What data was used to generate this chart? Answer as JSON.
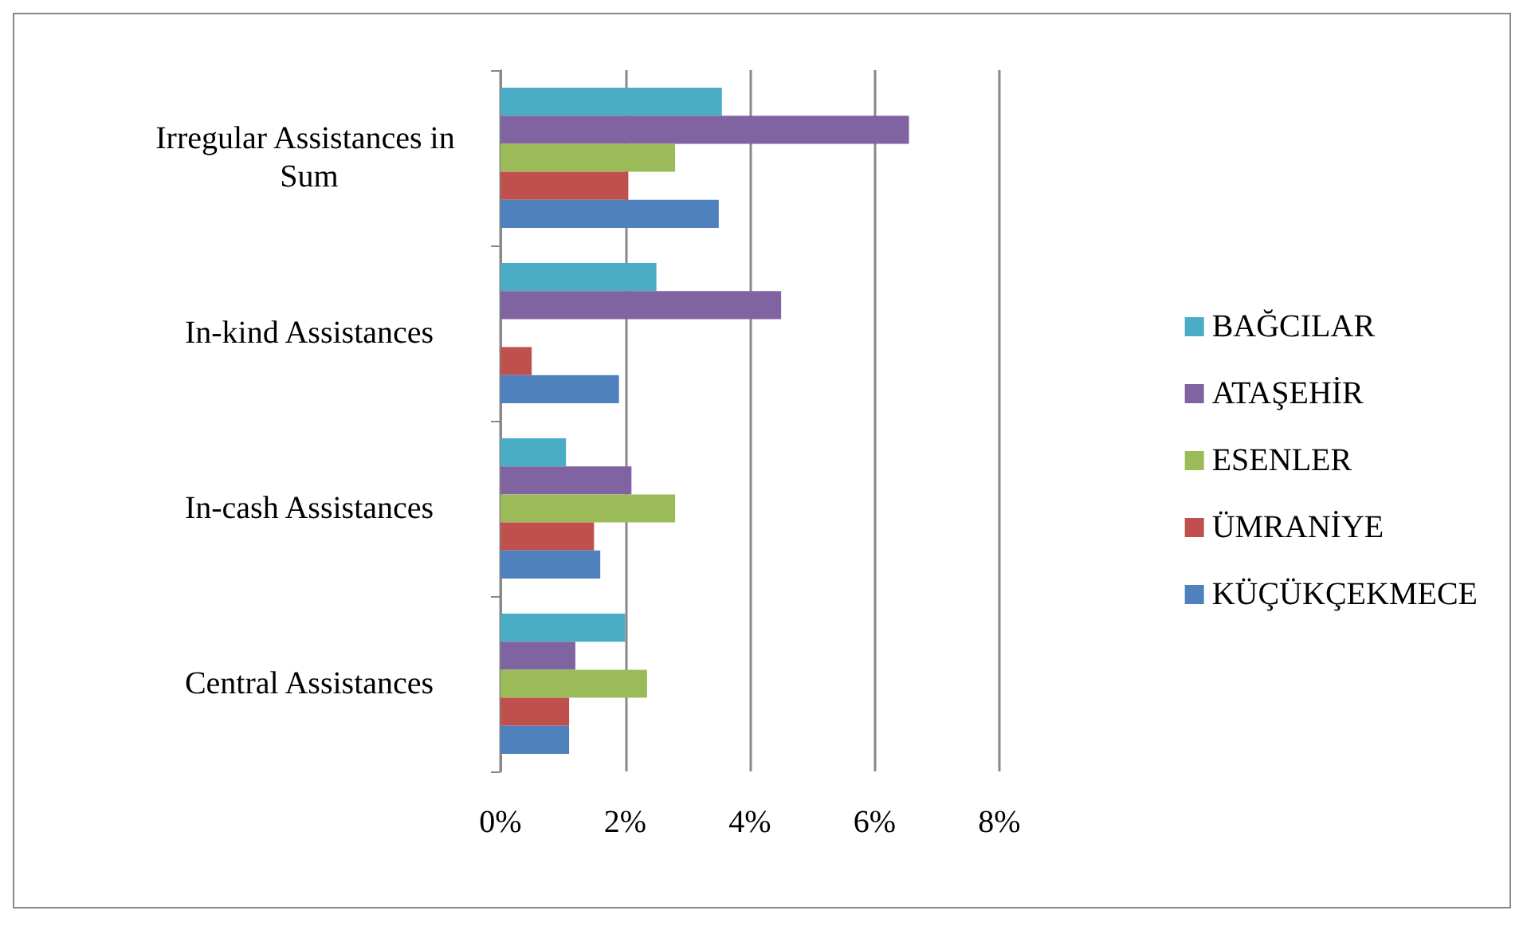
{
  "chart_data": {
    "type": "bar",
    "orientation": "horizontal",
    "categories": [
      "Irregular Assistances in Sum",
      "In-kind Assistances",
      "In-cash Assistances",
      "Central Assistances"
    ],
    "series": [
      {
        "name": "BAĞCILAR",
        "color": "#4bacc6",
        "values": [
          3.55,
          2.5,
          1.05,
          2.0
        ]
      },
      {
        "name": "ATAŞEHİR",
        "color": "#8064a2",
        "values": [
          6.55,
          4.5,
          2.1,
          1.2
        ]
      },
      {
        "name": "ESENLER",
        "color": "#9bbb59",
        "values": [
          2.8,
          null,
          2.8,
          2.35
        ]
      },
      {
        "name": "ÜMRANİYE",
        "color": "#c0504d",
        "values": [
          2.05,
          0.5,
          1.5,
          1.1
        ]
      },
      {
        "name": "KÜÇÜKÇEKMECE",
        "color": "#4f81bd",
        "values": [
          3.5,
          1.9,
          1.6,
          1.1
        ]
      }
    ],
    "xlim": [
      0,
      8
    ],
    "xticks": [
      {
        "value": 0,
        "label": "0%"
      },
      {
        "value": 2,
        "label": "2%"
      },
      {
        "value": 4,
        "label": "4%"
      },
      {
        "value": 6,
        "label": "6%"
      },
      {
        "value": 8,
        "label": "8%"
      }
    ],
    "grid": "x",
    "legend": "right"
  }
}
